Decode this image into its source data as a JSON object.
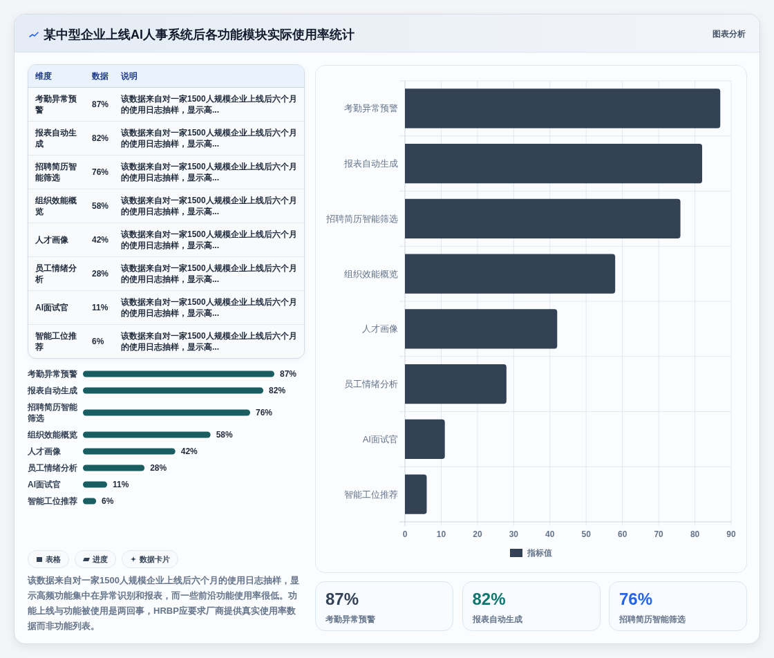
{
  "chart_data": [
    {
      "type": "other",
      "title": "某中型企业上线AI人事系统后各功能模块实际使用率统计",
      "annotations": [
        "图表分析"
      ],
      "categories": [
        "维度",
        "数据",
        "说明"
      ],
      "cell_labels": [
        [
          "考勤异常预警",
          "87%",
          "该数据来自对一家1500人规模企业上线后六个月的使用日志抽样，显示高..."
        ],
        [
          "报表自动生成",
          "82%",
          "该数据来自对一家1500人规模企业上线后六个月的使用日志抽样，显示高..."
        ],
        [
          "招聘简历智能筛选",
          "76%",
          "该数据来自对一家1500人规模企业上线后六个月的使用日志抽样，显示高..."
        ],
        [
          "组织效能概览",
          "58%",
          "该数据来自对一家1500人规模企业上线后六个月的使用日志抽样，显示高..."
        ],
        [
          "人才画像",
          "42%",
          "该数据来自对一家1500人规模企业上线后六个月的使用日志抽样，显示高..."
        ],
        [
          "员工情绪分析",
          "28%",
          "该数据来自对一家1500人规模企业上线后六个月的使用日志抽样，显示高..."
        ],
        [
          "AI面试官",
          "11%",
          "该数据来自对一家1500人规模企业上线后六个月的使用日志抽样，显示高..."
        ],
        [
          "智能工位推荐",
          "6%",
          "该数据来自对一家1500人规模企业上线后六个月的使用日志抽样，显示高..."
        ]
      ]
    },
    {
      "type": "bar",
      "orientation": "horizontal",
      "categories": [
        "考勤异常预警",
        "报表自动生成",
        "招聘简历智能筛选",
        "组织效能概览",
        "人才画像",
        "员工情绪分析",
        "AI面试官",
        "智能工位推荐"
      ],
      "values": [
        87,
        82,
        76,
        58,
        42,
        28,
        11,
        6
      ],
      "value_labels": [
        "87%",
        "82%",
        "76%",
        "58%",
        "42%",
        "28%",
        "11%",
        "6%"
      ],
      "color": "#1b5e62",
      "tick_labels": false,
      "annotations": [
        "表格",
        "进度",
        "数据卡片",
        "该数据来自对一家1500人规模企业上线后六个月的使用日志抽样，显示高频功能集中在异常识别和报表，而一些前沿功能使用率很低。功能上线与功能被使用是两回事，HRBP应要求厂商提供真实使用率数据而非功能列表。"
      ]
    },
    {
      "type": "bar",
      "orientation": "horizontal",
      "categories": [
        "考勤异常预警",
        "报表自动生成",
        "招聘简历智能筛选",
        "组织效能概览",
        "人才画像",
        "员工情绪分析",
        "AI面试官",
        "智能工位推荐"
      ],
      "series": [
        {
          "name": "指标值",
          "color": "#334155",
          "values": [
            87,
            82,
            76,
            58,
            42,
            28,
            11,
            6
          ]
        }
      ],
      "xlim": [
        0,
        90
      ],
      "xticks": [
        0,
        10,
        20,
        30,
        40,
        50,
        60,
        70,
        80,
        90
      ],
      "grid": true,
      "legend": "bottom"
    },
    {
      "type": "other",
      "categories": [
        "考勤异常预警",
        "报表自动生成",
        "招聘简历智能筛选"
      ],
      "value_labels": [
        "87%",
        "82%",
        "76%"
      ]
    }
  ]
}
